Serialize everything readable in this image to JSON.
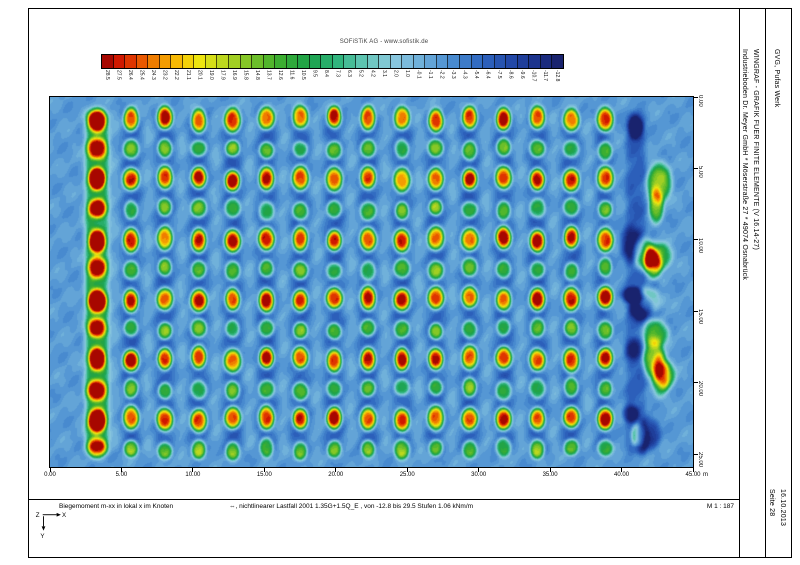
{
  "page": {
    "top_label": "SOFiSTiK AG - www.sofistik.de"
  },
  "titleblock": {
    "project_line": "Industrieboden Dr. Meyer GmbH * Möserstraße 27 * 49074 Osnabrück",
    "program_line": "WINGRAF - GRAFIK FUER FINITE ELEMENTE  (V 16.14-27)",
    "client_line": "GVG, Pufas Werk",
    "page_label": "Seite 28",
    "date_label": "16.10.2013"
  },
  "footer": {
    "left_label": "Biegemoment m-xx in lokal x im Knoten",
    "center_label": "⇔, nichtlinearer Lastfall 2001 1.35G+1.5Q_E , von -12.8 bis 29.5 Stufen 1.06 kNm/m",
    "scale_label": "M 1 : 187",
    "axis_x": "X",
    "axis_y": "Y",
    "axis_z": "Z"
  },
  "chart_data": {
    "type": "heatmap",
    "title": "Biegemoment m-xx in lokal x im Knoten",
    "unit": "kNm/m",
    "value_min": -12.8,
    "value_max": 29.5,
    "step": 1.06,
    "x_axis": {
      "ticks": [
        "0.00",
        "5.00",
        "10.00",
        "15.00",
        "20.00",
        "25.00",
        "30.00",
        "35.00",
        "40.00",
        "45.00"
      ],
      "unit": "m",
      "range_m": [
        0,
        45
      ]
    },
    "y_axis": {
      "ticks": [
        "0.00",
        "5.00",
        "10.00",
        "15.00",
        "20.00",
        "25.00"
      ],
      "range_m": [
        0,
        25.9
      ]
    },
    "legend_values": [
      "28.5",
      "27.5",
      "26.4",
      "25.4",
      "24.3",
      "23.2",
      "22.2",
      "21.1",
      "20.1",
      "19.0",
      "17.9",
      "16.9",
      "15.8",
      "14.8",
      "13.7",
      "12.6",
      "11.6",
      "10.5",
      "9.5",
      "8.4",
      "7.3",
      "6.3",
      "5.2",
      "4.2",
      "3.1",
      "2.0",
      "1.0",
      "-0.1",
      "-1.1",
      "-2.2",
      "-3.3",
      "-4.3",
      "-5.4",
      "-6.4",
      "-7.5",
      "-8.6",
      "-9.6",
      "-10.7",
      "-11.7",
      "-12.8"
    ],
    "colormap_stops": [
      {
        "t": 0.0,
        "c": "#181f66"
      },
      {
        "t": 0.05,
        "c": "#1b2f86"
      },
      {
        "t": 0.11,
        "c": "#2247a6"
      },
      {
        "t": 0.18,
        "c": "#2f67c0"
      },
      {
        "t": 0.25,
        "c": "#4e91d2"
      },
      {
        "t": 0.31,
        "c": "#6fb0da"
      },
      {
        "t": 0.37,
        "c": "#8cc9de"
      },
      {
        "t": 0.43,
        "c": "#64c6b8"
      },
      {
        "t": 0.49,
        "c": "#2fb47b"
      },
      {
        "t": 0.55,
        "c": "#1ba14a"
      },
      {
        "t": 0.62,
        "c": "#40b02e"
      },
      {
        "t": 0.68,
        "c": "#7ec428"
      },
      {
        "t": 0.74,
        "c": "#c0d81e"
      },
      {
        "t": 0.79,
        "c": "#f0e60e"
      },
      {
        "t": 0.84,
        "c": "#f7b703"
      },
      {
        "t": 0.89,
        "c": "#ef7a00"
      },
      {
        "t": 0.93,
        "c": "#e43d00"
      },
      {
        "t": 0.97,
        "c": "#cb1000"
      },
      {
        "t": 1.0,
        "c": "#8e0000"
      }
    ],
    "field": {
      "seed": 20,
      "col_x_start": 3.3,
      "col_spacing": 2.37,
      "col_count": 16,
      "row_y_start": 1.55,
      "row_spacing": 2.1,
      "row_count": 12,
      "bg_edge": -1.4,
      "bg_base": -3.4,
      "bg_stripe_amp": -2.9,
      "stripe_x_end": 40.0,
      "major_amp": 31,
      "major_var": 6,
      "minor_amp": 17,
      "minor_var": 6,
      "first_major_amp": 27,
      "first_minor_amp": 21,
      "ridge_amp": 16,
      "ridge_gx": 0.62,
      "edge_ridge_amp": -4.5,
      "edge_ridge_x": 41.0,
      "edge_ridge_gx": 0.55,
      "edge_x_min": 40.5,
      "edge_x_max": 43.3,
      "edge_bumps": 20,
      "noise_amp": 0.75,
      "green_level": 12.5
    }
  }
}
